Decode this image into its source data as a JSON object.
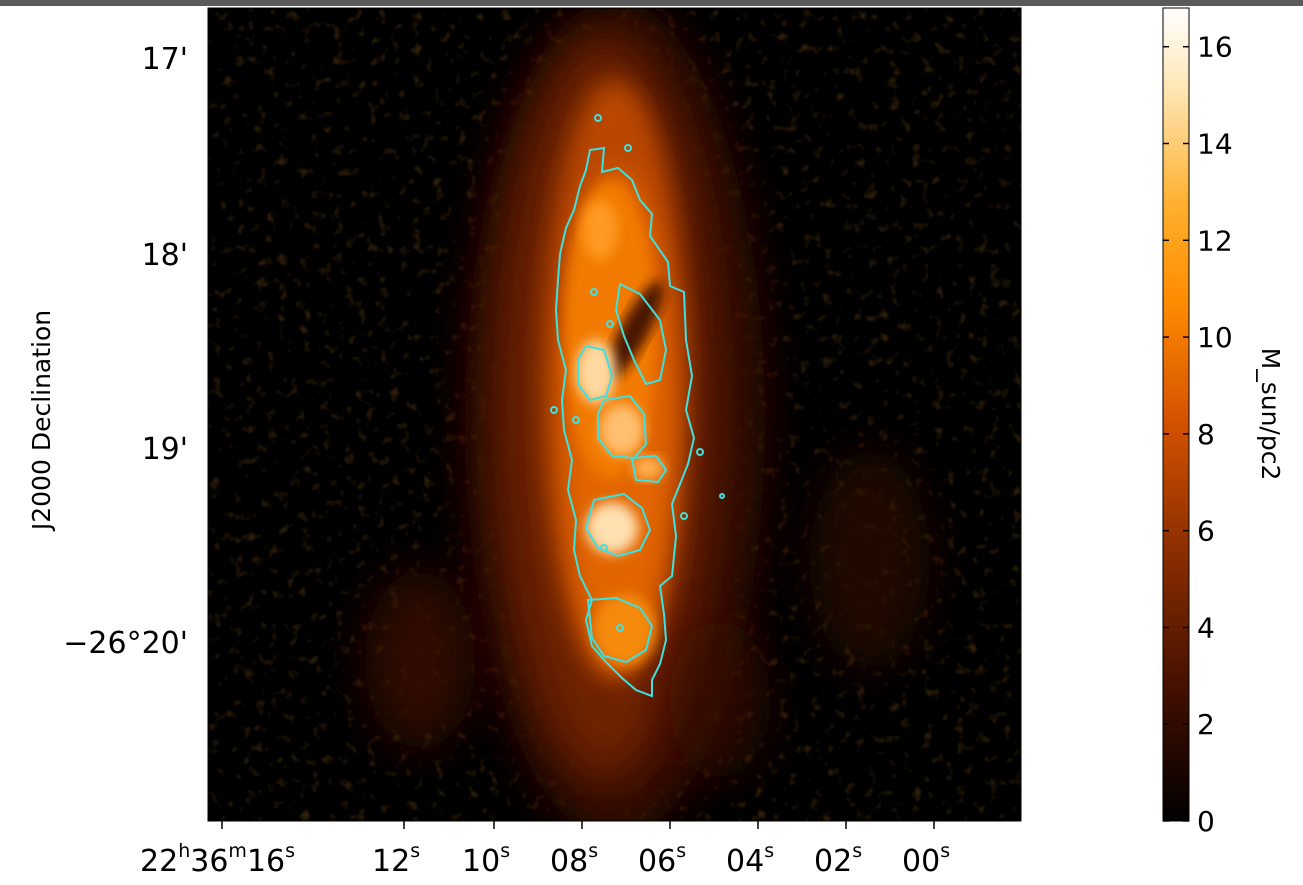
{
  "image": {
    "subject": "dust mass surface density map of an edge-on galaxy",
    "colormap": [
      "#000000",
      "#3a0c00",
      "#8a2d00",
      "#d85400",
      "#ff8c00",
      "#ffb030",
      "#ffe6b4",
      "#ffffff"
    ],
    "contour_color": "#3fe0e0"
  },
  "axes": {
    "y_title": "J2000 Declination",
    "dec_ticks": [
      {
        "label": "17'"
      },
      {
        "label": "18'"
      },
      {
        "label": "19'"
      },
      {
        "label": "−26°20'"
      }
    ],
    "ra_ticks": [
      {
        "prefix": "22",
        "h": "h",
        "mid": "36",
        "m": "m",
        "val": "16",
        "s": "s"
      },
      {
        "val": "12",
        "s": "s"
      },
      {
        "val": "10",
        "s": "s"
      },
      {
        "val": "08",
        "s": "s"
      },
      {
        "val": "06",
        "s": "s"
      },
      {
        "val": "04",
        "s": "s"
      },
      {
        "val": "02",
        "s": "s"
      },
      {
        "val": "00",
        "s": "s"
      }
    ]
  },
  "colorbar": {
    "label": "M_sun/pc2",
    "range": [
      0,
      16.8
    ],
    "ticks": [
      {
        "value": 0,
        "label": "0"
      },
      {
        "value": 2,
        "label": "2"
      },
      {
        "value": 4,
        "label": "4"
      },
      {
        "value": 6,
        "label": "6"
      },
      {
        "value": 8,
        "label": "8"
      },
      {
        "value": 10,
        "label": "10"
      },
      {
        "value": 12,
        "label": "12"
      },
      {
        "value": 14,
        "label": "14"
      },
      {
        "value": 16,
        "label": "16"
      }
    ]
  }
}
